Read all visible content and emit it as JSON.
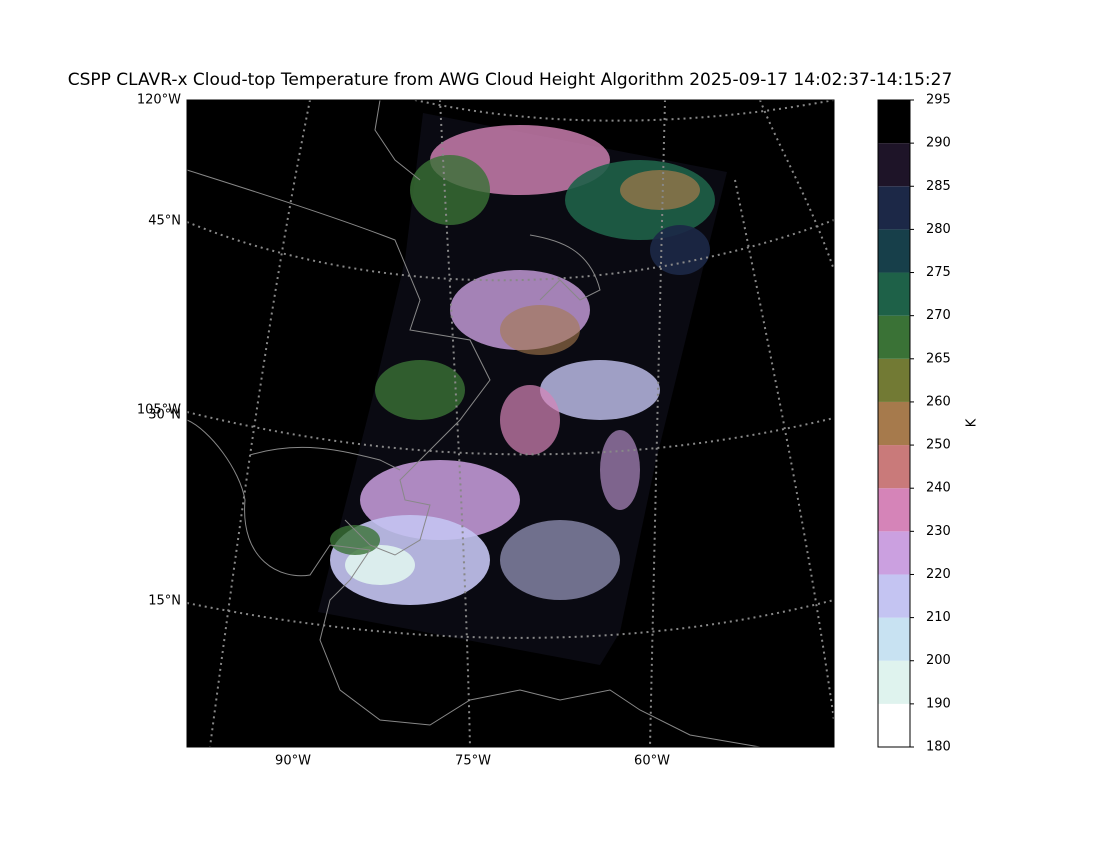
{
  "map": {
    "title": "CSPP CLAVR-x Cloud-top Temperature from AWG Cloud Height Algorithm 2025-09-17 14:02:37-14:15:27",
    "edge_labels": [
      "120°W",
      "105°W"
    ],
    "lat_labels": [
      "45°N",
      "30°N",
      "15°N"
    ],
    "lon_labels": [
      "90°W",
      "75°W",
      "60°W"
    ],
    "colorbar": {
      "label": "K",
      "ticks": [
        180,
        190,
        200,
        210,
        220,
        230,
        240,
        250,
        260,
        265,
        270,
        275,
        280,
        285,
        290,
        295
      ],
      "colors": [
        "#ffffff",
        "#dff3ee",
        "#c8e2f2",
        "#c4c4f2",
        "#cba0e0",
        "#d584b8",
        "#c97a7a",
        "#a67a4c",
        "#727a34",
        "#3a7236",
        "#1e6148",
        "#173f4a",
        "#1c2847",
        "#1e1428",
        "#000000"
      ]
    }
  }
}
